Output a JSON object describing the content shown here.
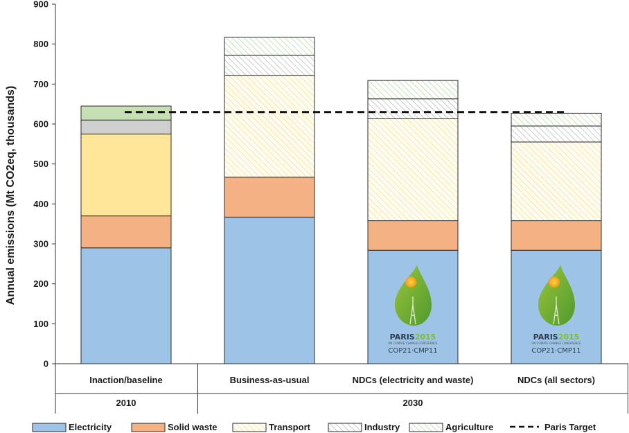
{
  "chart_data": {
    "type": "bar",
    "stacked": true,
    "ylabel": "Annual emissions (Mt CO2eq, thousands)",
    "ylim": [
      0,
      900
    ],
    "yticks": [
      0,
      100,
      200,
      300,
      400,
      500,
      600,
      700,
      800,
      900
    ],
    "categories": [
      "Inaction/baseline",
      "Business-as-usual",
      "NDCs (electricity and waste)",
      "NDCs (all sectors)"
    ],
    "groups": [
      {
        "label": "2010",
        "categories": [
          "Inaction/baseline"
        ]
      },
      {
        "label": "2030",
        "categories": [
          "Business-as-usual",
          "NDCs (electricity and waste)",
          "NDCs (all sectors)"
        ]
      }
    ],
    "series": [
      {
        "name": "Electricity",
        "values": [
          290,
          367,
          284,
          284
        ],
        "color": "#9dc3e6",
        "hatch": [
          false,
          false,
          false,
          false
        ]
      },
      {
        "name": "Solid waste",
        "values": [
          80,
          100,
          74,
          74
        ],
        "color": "#f4b183",
        "hatch": [
          false,
          false,
          false,
          false
        ]
      },
      {
        "name": "Transport",
        "values": [
          205,
          255,
          255,
          197
        ],
        "color": "#ffe699",
        "hatch": [
          false,
          true,
          true,
          true
        ]
      },
      {
        "name": "Industry",
        "values": [
          35,
          50,
          50,
          40
        ],
        "color": "#d0d0d0",
        "hatch": [
          false,
          true,
          true,
          true
        ]
      },
      {
        "name": "Agriculture",
        "values": [
          35,
          45,
          46,
          32
        ],
        "color": "#c6e0b4",
        "hatch": [
          false,
          true,
          true,
          true
        ]
      }
    ],
    "reference_line": {
      "name": "Paris Target",
      "value": 630,
      "style": "dashed"
    },
    "legend_position": "bottom",
    "grid": false,
    "logos": [
      {
        "category": "NDCs (electricity and waste)",
        "title_a": "PARIS",
        "title_b": "2015",
        "subtitle": "UN CLIMATE CHANGE CONFERENCE",
        "line": "COP21·CMP11"
      },
      {
        "category": "NDCs (all sectors)",
        "title_a": "PARIS",
        "title_b": "2015",
        "subtitle": "UN CLIMATE CHANGE CONFERENCE",
        "line": "COP21·CMP11"
      }
    ]
  }
}
